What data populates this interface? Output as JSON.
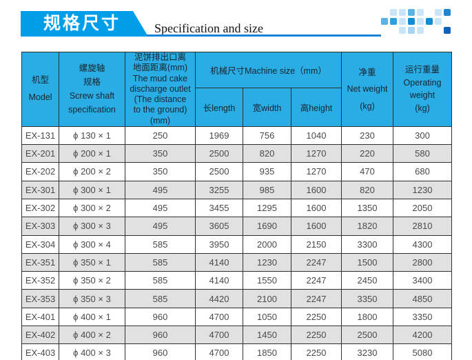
{
  "header": {
    "title": "规格尺寸",
    "subtitle": "Specification and size"
  },
  "table": {
    "header": {
      "model": "机型\nModel",
      "screw": "螺旋轴\n规格\nScrew shaft\nspecification",
      "outlet": "泥饼排出口离\n地面距离(mm)\nThe mud cake\ndischarge outlet\n(The distance\nto the ground)\n(mm)",
      "machine_size": "机械尺寸Machine size（mm）",
      "length": "长length",
      "width": "宽width",
      "height": "高height",
      "net_weight": "净重\nNet weight\n(kg)",
      "operating_weight": "运行重量\nOperating\nweight\n(kg)"
    },
    "rows": [
      {
        "model": "EX-131",
        "screw": "ϕ 130 × 1",
        "outlet": "250",
        "length": "1969",
        "width": "756",
        "height": "1040",
        "net": "230",
        "operating": "300"
      },
      {
        "model": "EX-201",
        "screw": "ϕ 200 × 1",
        "outlet": "350",
        "length": "2500",
        "width": "820",
        "height": "1270",
        "net": "220",
        "operating": "580"
      },
      {
        "model": "EX-202",
        "screw": "ϕ 200 × 2",
        "outlet": "350",
        "length": "2500",
        "width": "935",
        "height": "1270",
        "net": "470",
        "operating": "680"
      },
      {
        "model": "EX-301",
        "screw": "ϕ 300 × 1",
        "outlet": "495",
        "length": "3255",
        "width": "985",
        "height": "1600",
        "net": "820",
        "operating": "1230"
      },
      {
        "model": "EX-302",
        "screw": "ϕ 300 × 2",
        "outlet": "495",
        "length": "3455",
        "width": "1295",
        "height": "1600",
        "net": "1350",
        "operating": "2050"
      },
      {
        "model": "EX-303",
        "screw": "ϕ 300 × 3",
        "outlet": "495",
        "length": "3605",
        "width": "1690",
        "height": "1600",
        "net": "1820",
        "operating": "2810"
      },
      {
        "model": "EX-304",
        "screw": "ϕ 300 × 4",
        "outlet": "585",
        "length": "3950",
        "width": "2000",
        "height": "2150",
        "net": "3300",
        "operating": "4300"
      },
      {
        "model": "EX-351",
        "screw": "ϕ 350 × 1",
        "outlet": "585",
        "length": "4140",
        "width": "1230",
        "height": "2247",
        "net": "1500",
        "operating": "2800"
      },
      {
        "model": "EX-352",
        "screw": "ϕ 350 × 2",
        "outlet": "585",
        "length": "4140",
        "width": "1550",
        "height": "2247",
        "net": "2450",
        "operating": "3400"
      },
      {
        "model": "EX-353",
        "screw": "ϕ 350 × 3",
        "outlet": "585",
        "length": "4420",
        "width": "2100",
        "height": "2247",
        "net": "3350",
        "operating": "4850"
      },
      {
        "model": "EX-401",
        "screw": "ϕ 400 × 1",
        "outlet": "960",
        "length": "4700",
        "width": "1050",
        "height": "2250",
        "net": "1800",
        "operating": "3350"
      },
      {
        "model": "EX-402",
        "screw": "ϕ 400 × 2",
        "outlet": "960",
        "length": "4700",
        "width": "1450",
        "height": "2250",
        "net": "2500",
        "operating": "4200"
      },
      {
        "model": "EX-403",
        "screw": "ϕ 400 × 3",
        "outlet": "960",
        "length": "4700",
        "width": "1850",
        "height": "2250",
        "net": "3230",
        "operating": "5080"
      }
    ]
  },
  "colors": {
    "banner_blue": "#009ee8",
    "underline_blue": "#1883d6",
    "header_cyan": "#2aace4",
    "border_dark": "#2f2f2f",
    "row_alt_gray": "#e1e1e1",
    "data_text": "#4a4a4a",
    "header_text": "#19252e"
  },
  "decor": {
    "matrix": [
      [
        "",
        "#c9e5f7",
        "#c9e5f7",
        "#5cb3e6",
        "#c9e5f7",
        "",
        "#c9e5f7",
        "#1c86d2"
      ],
      [
        "#5cb3e6",
        "#2f9fe0",
        "#c9e5f7",
        "#0f8ed8",
        "#c9e5f7",
        "#0f8ed8",
        "#c9e5f7",
        ""
      ],
      [
        "",
        "",
        "#c9e5f7",
        "#a5d4f0",
        "#c9e5f7",
        "",
        "",
        "#1162b2"
      ]
    ]
  }
}
